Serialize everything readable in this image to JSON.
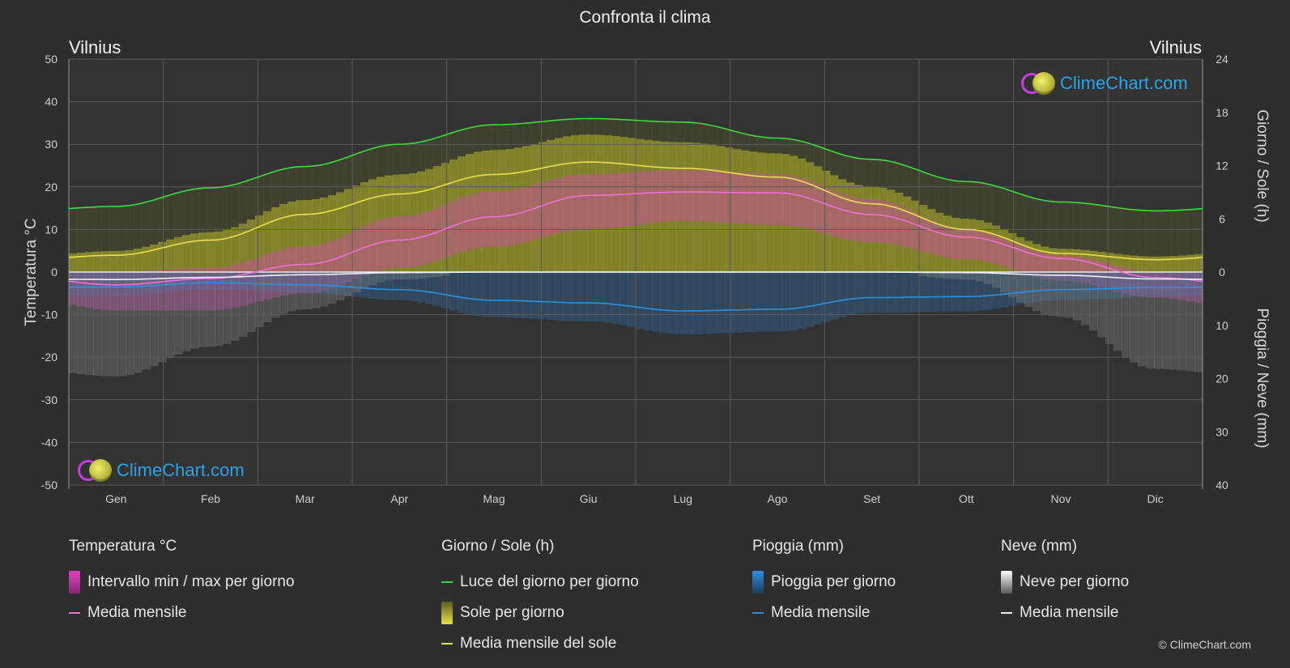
{
  "title": "Confronta il clima",
  "location_left": "Vilnius",
  "location_right": "Vilnius",
  "watermark": "ClimeChart.com",
  "copyright": "© ClimeChart.com",
  "colors": {
    "background": "#2e2e2e",
    "daylight": "#3ddc3d",
    "sun_mean": "#e6e04a",
    "temp_mean": "#f070d8",
    "rain_mean": "#2f8fe0",
    "snow_mean": "#f0f0f0",
    "temp_band": "#e040c0",
    "sun_band": "#b8b82a",
    "rain_band": "#2e6fb0",
    "snow_band": "#8a8a8a"
  },
  "chart_data": {
    "type": "line",
    "categories": [
      "Gen",
      "Feb",
      "Mar",
      "Apr",
      "Mag",
      "Giu",
      "Lug",
      "Ago",
      "Set",
      "Ott",
      "Nov",
      "Dic"
    ],
    "left_axis": {
      "label": "Temperatura °C",
      "range": [
        -50,
        50
      ],
      "ticks": [
        50,
        40,
        30,
        20,
        10,
        0,
        -10,
        -20,
        -30,
        -40,
        -50
      ]
    },
    "right_axis_top": {
      "label": "Giorno / Sole (h)",
      "range": [
        0,
        24
      ],
      "ticks": [
        24,
        18,
        12,
        6,
        0
      ]
    },
    "right_axis_bottom": {
      "label": "Pioggia / Neve (mm)",
      "range": [
        0,
        40
      ],
      "ticks": [
        0,
        10,
        20,
        30,
        40
      ]
    },
    "series": [
      {
        "name": "Luce del giorno per giorno",
        "axis": "hours",
        "values": [
          7.4,
          9.5,
          11.9,
          14.4,
          16.6,
          17.3,
          16.9,
          15.1,
          12.7,
          10.2,
          7.9,
          6.9
        ]
      },
      {
        "name": "Media mensile del sole",
        "axis": "hours",
        "values": [
          1.9,
          3.6,
          6.5,
          8.8,
          11.0,
          12.4,
          11.7,
          10.7,
          7.7,
          4.8,
          2.1,
          1.4
        ]
      },
      {
        "name": "Media mensile",
        "group": "Temperatura °C",
        "axis": "temp",
        "values": [
          -3.0,
          -1.5,
          1.8,
          7.5,
          13.0,
          18.0,
          18.8,
          18.6,
          13.5,
          8.2,
          3.2,
          -1.3
        ]
      },
      {
        "name": "Media mensile",
        "group": "Pioggia (mm)",
        "axis": "precip",
        "values": [
          2.8,
          2.0,
          2.4,
          3.3,
          5.3,
          5.8,
          7.3,
          7.0,
          4.8,
          4.6,
          3.3,
          2.9
        ]
      },
      {
        "name": "Media mensile",
        "group": "Neve (mm)",
        "axis": "precip",
        "values": [
          1.4,
          1.0,
          0.5,
          0.1,
          0.0,
          0.0,
          0.0,
          0.0,
          0.0,
          0.1,
          0.6,
          1.3
        ]
      }
    ],
    "temp_band_range": {
      "min": [
        -9,
        -9,
        -5,
        1,
        6,
        10,
        12,
        11,
        7,
        3,
        -2,
        -6
      ],
      "max": [
        0,
        1,
        6,
        13,
        19,
        23,
        24,
        23,
        17,
        10,
        4,
        0
      ]
    },
    "grid": true
  },
  "legend": {
    "temp": {
      "heading": "Temperatura °C",
      "items": [
        "Intervallo min / max per giorno",
        "Media mensile"
      ]
    },
    "sun": {
      "heading": "Giorno / Sole (h)",
      "items": [
        "Luce del giorno per giorno",
        "Sole per giorno",
        "Media mensile del sole"
      ]
    },
    "rain": {
      "heading": "Pioggia (mm)",
      "items": [
        "Pioggia per giorno",
        "Media mensile"
      ]
    },
    "snow": {
      "heading": "Neve (mm)",
      "items": [
        "Neve per giorno",
        "Media mensile"
      ]
    }
  }
}
